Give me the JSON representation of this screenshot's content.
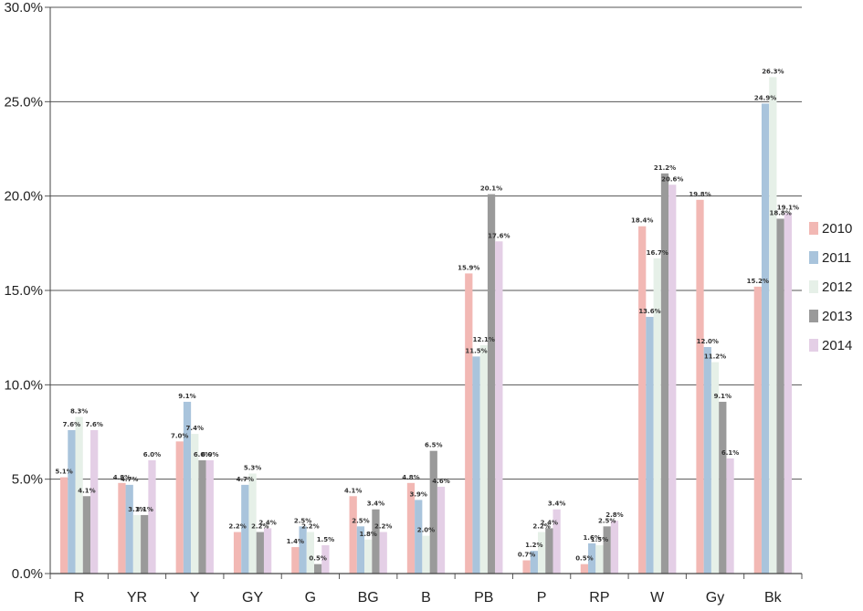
{
  "chart_data": {
    "type": "bar",
    "title": "",
    "xlabel": "",
    "ylabel": "",
    "ylim": [
      0,
      30
    ],
    "yticks": [
      "0.0%",
      "5.0%",
      "10.0%",
      "15.0%",
      "20.0%",
      "25.0%",
      "30.0%"
    ],
    "grid": true,
    "legend_position": "right",
    "categories": [
      "R",
      "YR",
      "Y",
      "GY",
      "G",
      "BG",
      "B",
      "PB",
      "P",
      "RP",
      "W",
      "Gy",
      "Bk"
    ],
    "series": [
      {
        "name": "2010",
        "color": "#f2b8b4",
        "values": [
          5.1,
          4.8,
          7.0,
          2.2,
          1.4,
          4.1,
          4.8,
          15.9,
          0.7,
          0.5,
          18.4,
          19.8,
          15.2
        ],
        "labels": [
          "5.1%",
          "4.8%",
          "7.0%",
          "2.2%",
          "1.4%",
          "4.1%",
          "4.8%",
          "15.9%",
          "0.7%",
          "0.5%",
          "18.4%",
          "19.8%",
          "15.2%"
        ]
      },
      {
        "name": "2011",
        "color": "#a9c4dc",
        "values": [
          7.6,
          4.7,
          9.1,
          4.7,
          2.5,
          2.5,
          3.9,
          11.5,
          1.2,
          1.6,
          13.6,
          12.0,
          24.9
        ],
        "labels": [
          "7.6%",
          "4.7%",
          "9.1%",
          "4.7%",
          "2.5%",
          "2.5%",
          "3.9%",
          "11.5%",
          "1.2%",
          "1.6%",
          "13.6%",
          "12.0%",
          "24.9%"
        ]
      },
      {
        "name": "2012",
        "color": "#e6f0e8",
        "values": [
          8.3,
          3.1,
          7.4,
          5.3,
          2.2,
          1.8,
          2.0,
          12.1,
          2.2,
          1.5,
          16.7,
          11.2,
          26.3
        ],
        "labels": [
          "8.3%",
          "3.1%",
          "7.4%",
          "5.3%",
          "2.2%",
          "1.8%",
          "2.0%",
          "12.1%",
          "2.2%",
          "1.5%",
          "16.7%",
          "11.2%",
          "26.3%"
        ]
      },
      {
        "name": "2013",
        "color": "#9a9a9a",
        "values": [
          4.1,
          3.1,
          6.0,
          2.2,
          0.5,
          3.4,
          6.5,
          20.1,
          2.4,
          2.5,
          21.2,
          9.1,
          18.8
        ],
        "labels": [
          "4.1%",
          "3.1%",
          "6.0%",
          "2.2%",
          "0.5%",
          "3.4%",
          "6.5%",
          "20.1%",
          "2.4%",
          "2.5%",
          "21.2%",
          "9.1%",
          "18.8%"
        ]
      },
      {
        "name": "2014",
        "color": "#e4cfe6",
        "values": [
          7.6,
          6.0,
          6.0,
          2.4,
          1.5,
          2.2,
          4.6,
          17.6,
          3.4,
          2.8,
          20.6,
          6.1,
          19.1
        ],
        "labels": [
          "7.6%",
          "6.0%",
          "6.0%",
          "2.4%",
          "1.5%",
          "2.2%",
          "4.6%",
          "17.6%",
          "3.4%",
          "2.8%",
          "20.6%",
          "6.1%",
          "19.1%"
        ]
      }
    ]
  }
}
